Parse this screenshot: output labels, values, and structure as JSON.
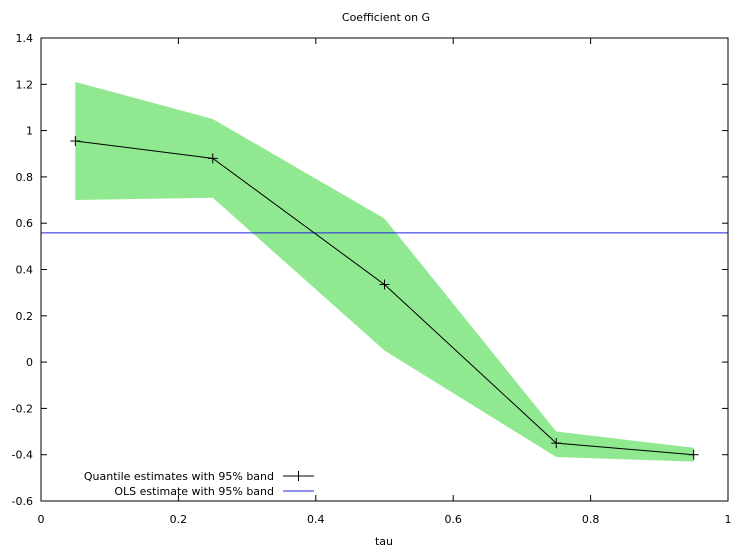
{
  "chart_data": {
    "type": "line",
    "title": "Coefficient on G",
    "xlabel": "tau",
    "ylabel": "",
    "xlim": [
      0,
      1
    ],
    "ylim": [
      -0.6,
      1.4
    ],
    "xticks": [
      0,
      0.2,
      0.4,
      0.6,
      0.8,
      1
    ],
    "xtick_labels": [
      "0",
      "0.2",
      "0.4",
      "0.6",
      "0.8",
      "1"
    ],
    "yticks": [
      -0.6,
      -0.4,
      -0.2,
      0,
      0.2,
      0.4,
      0.6,
      0.8,
      1,
      1.2,
      1.4
    ],
    "ytick_labels": [
      "-0.6",
      "-0.4",
      "-0.2",
      "0",
      "0.2",
      "0.4",
      "0.6",
      "0.8",
      "1",
      "1.2",
      "1.4"
    ],
    "grid": false,
    "legend_position": "bottom-left",
    "series": [
      {
        "name": "Quantile estimates with 95% band",
        "color": "#000000",
        "band_color": "#90e890",
        "x": [
          0.05,
          0.25,
          0.5,
          0.75,
          0.95
        ],
        "y": [
          0.955,
          0.88,
          0.335,
          -0.35,
          -0.4
        ],
        "lower": [
          0.7,
          0.71,
          0.05,
          -0.41,
          -0.43
        ],
        "upper": [
          1.21,
          1.05,
          0.62,
          -0.3,
          -0.37
        ]
      },
      {
        "name": "OLS estimate with 95% band",
        "color": "#2222dd",
        "y": 0.558
      }
    ]
  }
}
